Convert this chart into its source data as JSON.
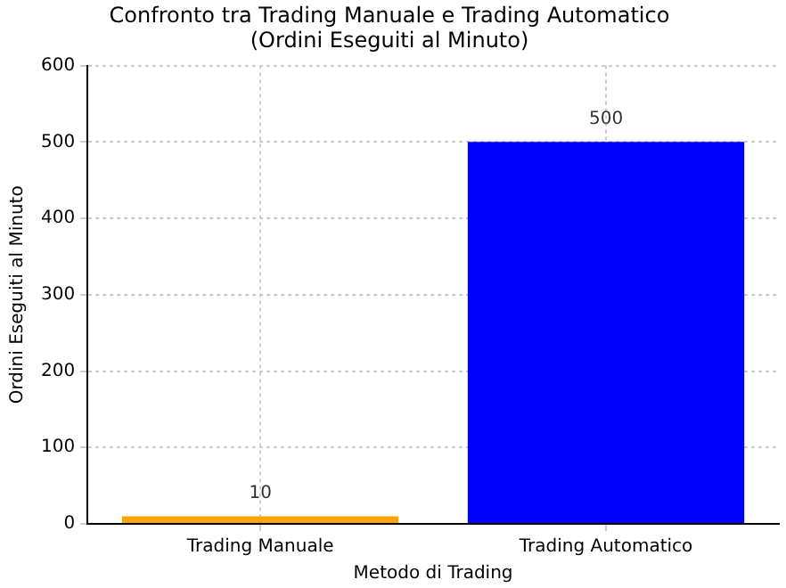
{
  "chart_data": {
    "type": "bar",
    "title": "Confronto tra Trading Manuale e Trading Automatico\n(Ordini Eseguiti al Minuto)",
    "xlabel": "Metodo di Trading",
    "ylabel": "Ordini Eseguiti al Minuto",
    "categories": [
      "Trading Manuale",
      "Trading Automatico"
    ],
    "values": [
      10,
      500
    ],
    "colors": [
      "#ffa500",
      "#0000ff"
    ],
    "ylim": [
      0,
      600
    ],
    "yticks": [
      0,
      100,
      200,
      300,
      400,
      500,
      600
    ],
    "grid": true,
    "data_labels": true
  }
}
